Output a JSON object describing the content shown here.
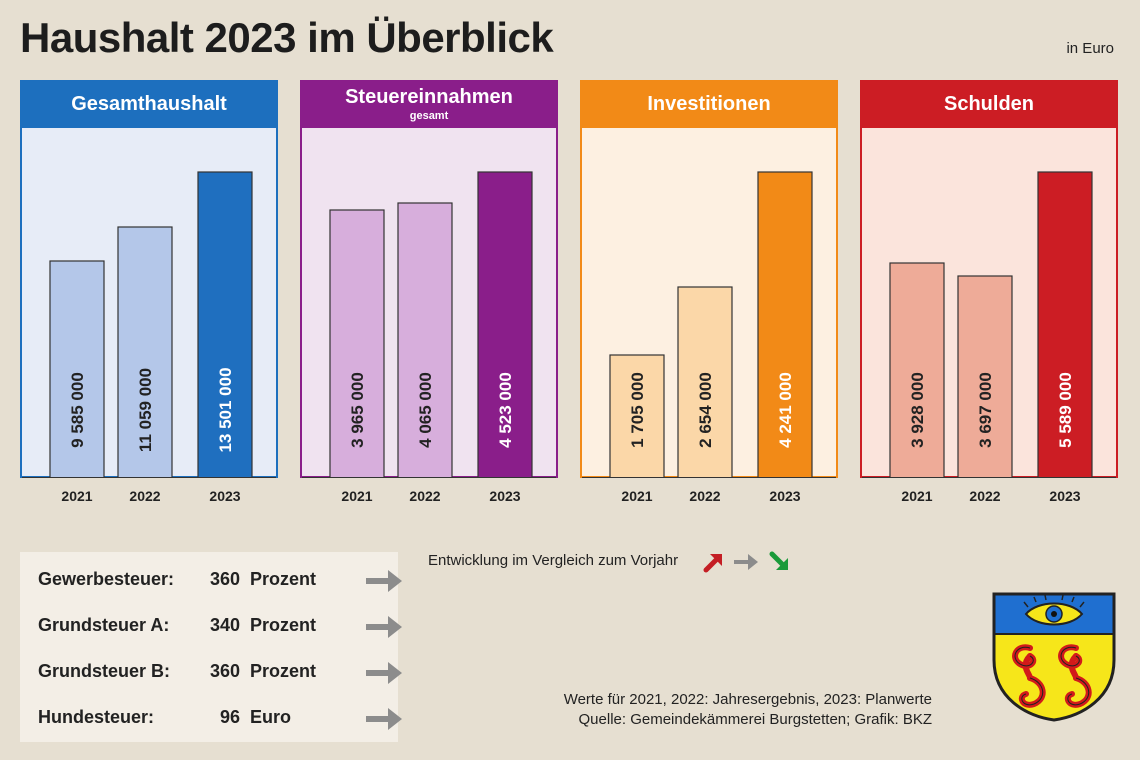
{
  "header": {
    "title": "Haushalt 2023 im Überblick",
    "unit": "in Euro"
  },
  "chart_data": [
    {
      "type": "bar",
      "title": "Gesamthaushalt",
      "subtitle": "",
      "categories": [
        "2021",
        "2022",
        "2023"
      ],
      "values": [
        9585000,
        11059000,
        13501000
      ],
      "value_labels": [
        "9 585 000",
        "11 059 000",
        "13 501 000"
      ],
      "colors": {
        "head": "#1d6fbe",
        "bg": "#e7ecf7",
        "bar": "#b4c7e9",
        "highlight": "#1f6fbf"
      }
    },
    {
      "type": "bar",
      "title": "Steuereinnahmen",
      "subtitle": "gesamt",
      "categories": [
        "2021",
        "2022",
        "2023"
      ],
      "values": [
        3965000,
        4065000,
        4523000
      ],
      "value_labels": [
        "3 965 000",
        "4 065 000",
        "4 523 000"
      ],
      "colors": {
        "head": "#8a1e8a",
        "bg": "#f0e3f0",
        "bar": "#d7aedc",
        "highlight": "#8a1e8a"
      }
    },
    {
      "type": "bar",
      "title": "Investitionen",
      "subtitle": "",
      "categories": [
        "2021",
        "2022",
        "2023"
      ],
      "values": [
        1705000,
        2654000,
        4241000
      ],
      "value_labels": [
        "1 705 000",
        "2 654 000",
        "4 241 000"
      ],
      "colors": {
        "head": "#f28a17",
        "bg": "#fdf0e1",
        "bar": "#fbd7a8",
        "highlight": "#f28a17"
      }
    },
    {
      "type": "bar",
      "title": "Schulden",
      "subtitle": "",
      "categories": [
        "2021",
        "2022",
        "2023"
      ],
      "values": [
        3928000,
        3697000,
        5589000
      ],
      "value_labels": [
        "3 928 000",
        "3 697 000",
        "5 589 000"
      ],
      "colors": {
        "head": "#cc1d24",
        "bg": "#fbe4dc",
        "bar": "#eeab98",
        "highlight": "#cc1d24"
      }
    }
  ],
  "taxes": [
    {
      "label": "Gewerbesteuer:",
      "value": "360",
      "unit": "Prozent",
      "trend": "flat"
    },
    {
      "label": "Grundsteuer A:",
      "value": "340",
      "unit": "Prozent",
      "trend": "flat"
    },
    {
      "label": "Grundsteuer B:",
      "value": "360",
      "unit": "Prozent",
      "trend": "flat"
    },
    {
      "label": "Hundesteuer:",
      "value": "96",
      "unit": "Euro",
      "trend": "flat"
    }
  ],
  "legend": {
    "text": "Entwicklung im Vergleich zum Vorjahr",
    "up_color": "#c41e24",
    "flat_color": "#8c8c8c",
    "down_color": "#1a9a3a"
  },
  "footnote": {
    "line1": "Werte für 2021, 2022: Jahresergebnis, 2023: Planwerte",
    "line2": "Quelle: Gemeindekämmerei Burgstetten; Grafik: BKZ"
  },
  "crest": {
    "name": "Wappen Burgstetten",
    "top_color": "#1f6fd0",
    "bottom_color": "#f6e61a",
    "spiral_color": "#d21a1a"
  }
}
